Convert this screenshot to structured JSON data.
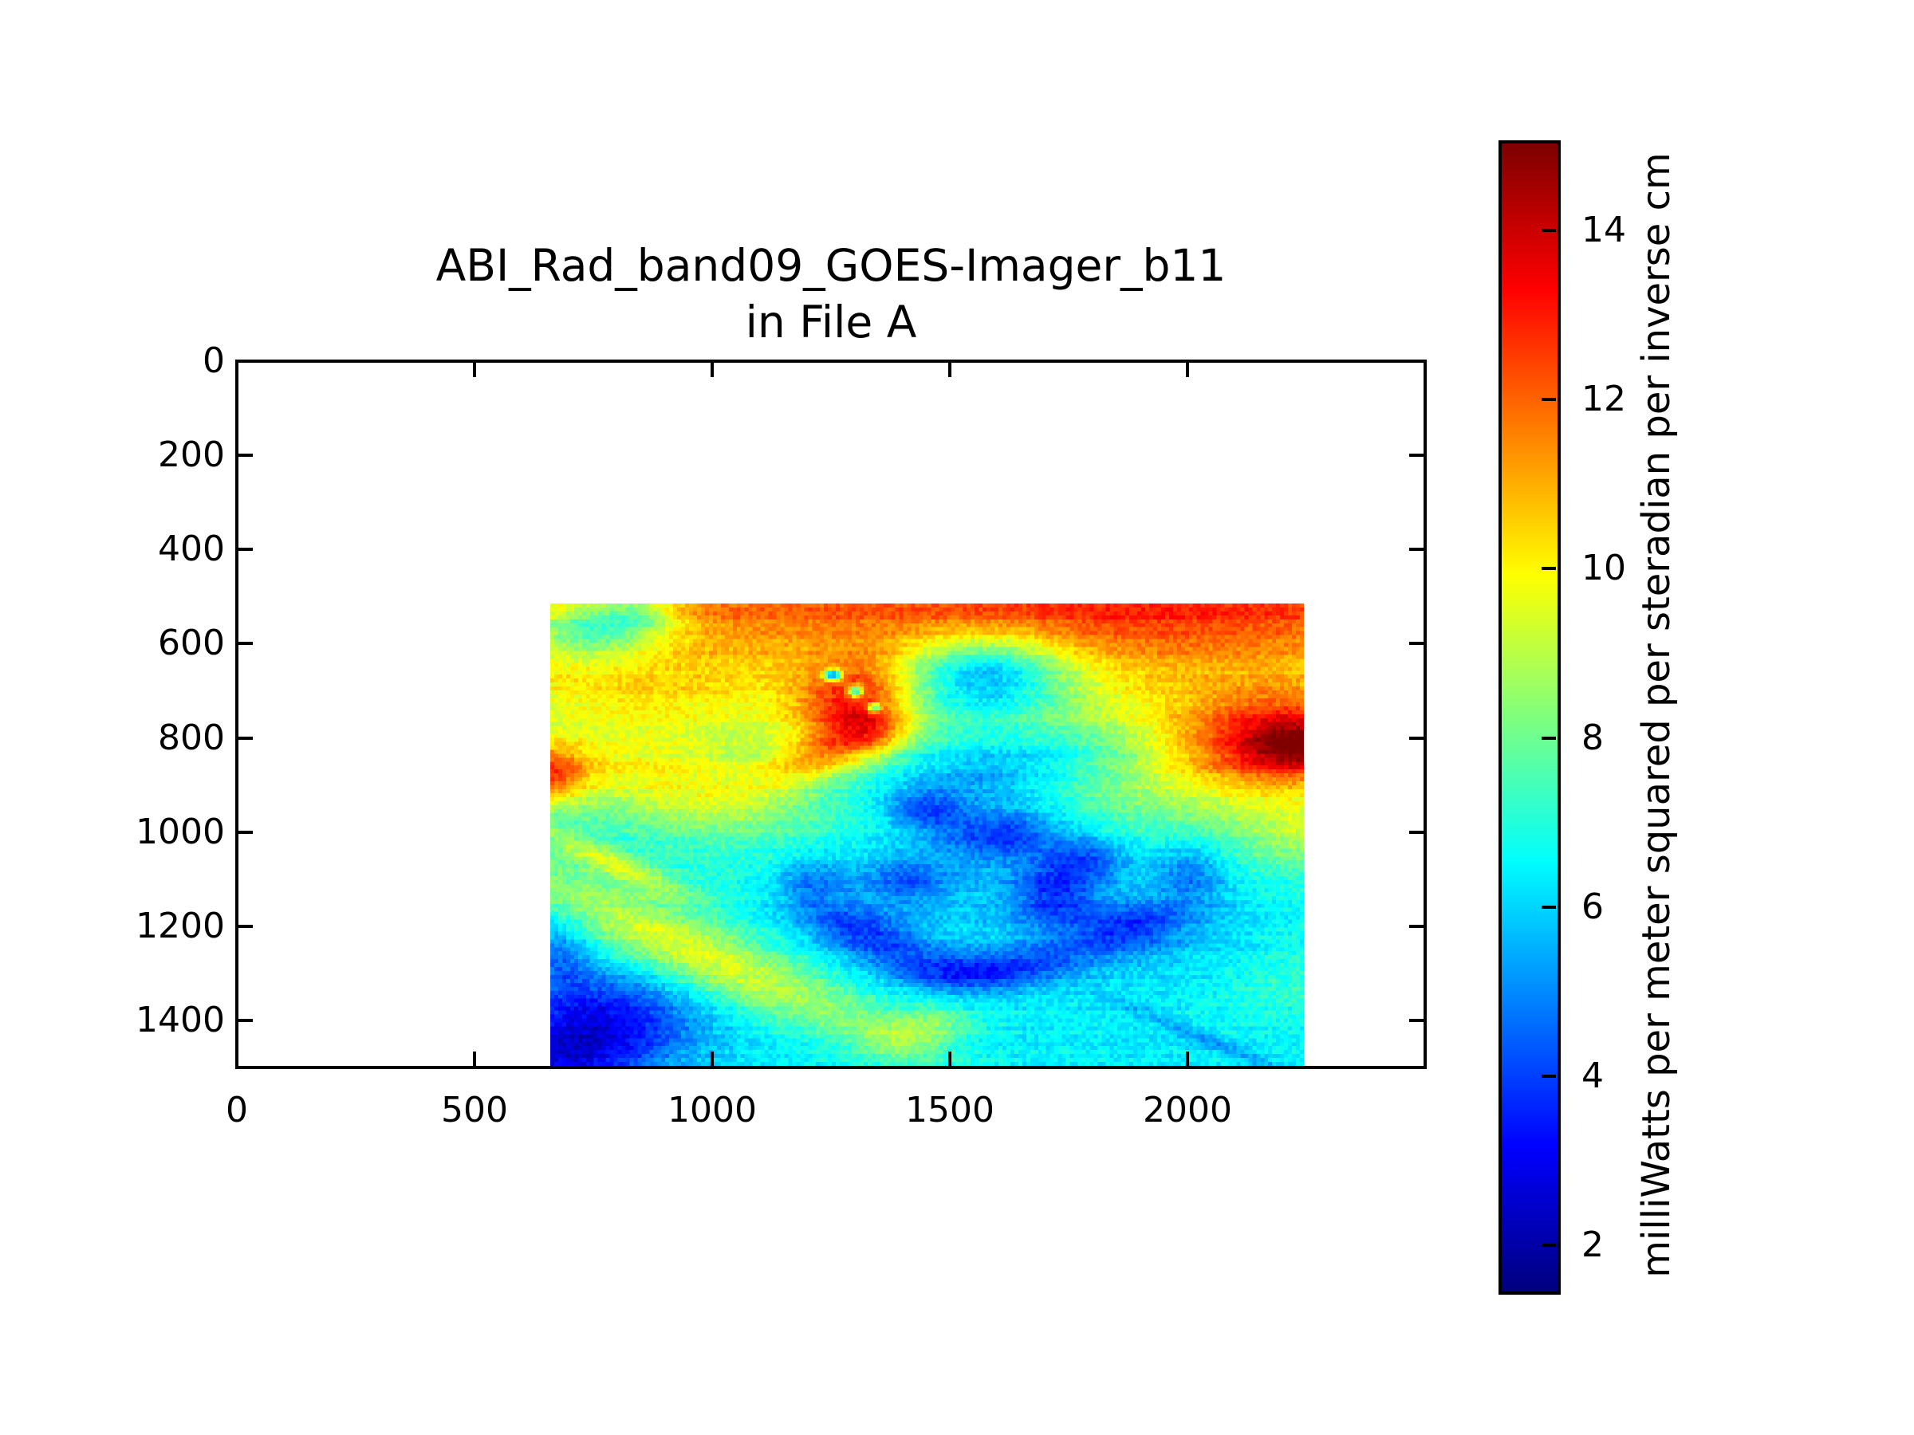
{
  "figure": {
    "background": "#ffffff",
    "size": [
      2400,
      1800
    ]
  },
  "chart_data": {
    "type": "heatmap",
    "title": "ABI_Rad_band09_GOES-Imager_b11",
    "title_line2": "in File A",
    "xlabel": "",
    "ylabel": "",
    "x_ticks": [
      0,
      500,
      1000,
      1500,
      2000
    ],
    "y_ticks": [
      0,
      200,
      400,
      600,
      800,
      1000,
      1200,
      1400
    ],
    "xlim": [
      0,
      2500
    ],
    "ylim": [
      0,
      1500
    ],
    "y_axis_inverted": true,
    "grid": false,
    "colormap": "jet",
    "image_extent": {
      "x_min": 659,
      "x_max": 2245,
      "y_top": 514,
      "y_bottom": 1497
    },
    "colorbar": {
      "location": "right",
      "ticks": [
        2,
        4,
        6,
        8,
        10,
        12,
        14
      ],
      "vmin": 1.45,
      "vmax": 15.05,
      "label": "milliWatts per meter squared per steradian per inverse cm"
    },
    "layout": {
      "axes_rect": [
        297,
        453,
        1490,
        886
      ],
      "colorbar_rect": [
        1881,
        178,
        72,
        1442
      ],
      "tick_length": 18,
      "tick_width": 4,
      "tick_direction": "in"
    },
    "description": "GOES ABI band-09 radiance sub-scene: warm orange band (~11-13) across the top, dark-red maximum (~15) at the right edge near rows 750-850, an orange-red hooked front near column 1300 row 700, a large cool cyan/blue cloud swirl (~3-7) through the center and lower half, and a deep-blue minimum (~2) in the bottom-left corner",
    "image_model": {
      "grid": [
        190,
        117
      ],
      "base": 7.1,
      "noise": 0.5,
      "row_noise": 0.2,
      "seed": 1234,
      "blobs": [
        [
          0.5,
          -0.05,
          9.9,
          0.21,
          0,
          5.0
        ],
        [
          0.75,
          0.04,
          0.38,
          0.13,
          0,
          1.2
        ],
        [
          0.15,
          0.22,
          0.25,
          0.14,
          10,
          2.0
        ],
        [
          0.06,
          0.05,
          0.1,
          0.07,
          0,
          -4.0
        ],
        [
          0.12,
          0.02,
          0.05,
          0.035,
          0,
          -1.6
        ],
        [
          0.86,
          0.33,
          0.24,
          0.2,
          0,
          2.2
        ],
        [
          0.99,
          0.3,
          0.15,
          0.105,
          0,
          5.0
        ],
        [
          1.0,
          0.31,
          0.075,
          0.05,
          0,
          1.9
        ],
        [
          1.01,
          0.5,
          0.09,
          0.07,
          0,
          1.3
        ],
        [
          0.4,
          0.22,
          0.075,
          0.1,
          15,
          4.2
        ],
        [
          0.43,
          0.275,
          0.05,
          0.05,
          0,
          1.7
        ],
        [
          0.355,
          0.335,
          0.1,
          0.045,
          -35,
          2.6
        ],
        [
          0.375,
          0.155,
          0.012,
          0.012,
          0,
          -7.0
        ],
        [
          0.405,
          0.19,
          0.01,
          0.012,
          0,
          -6.0
        ],
        [
          0.43,
          0.225,
          0.009,
          0.01,
          0,
          -5.0
        ],
        [
          -0.01,
          0.37,
          0.06,
          0.065,
          0,
          4.4
        ],
        [
          0.17,
          0.4,
          0.19,
          0.085,
          20,
          2.4
        ],
        [
          0.58,
          0.15,
          0.11,
          0.085,
          0,
          -4.0
        ],
        [
          0.66,
          0.33,
          0.18,
          0.06,
          -8,
          -1.5
        ],
        [
          0.58,
          0.58,
          0.28,
          0.22,
          0,
          -1.3
        ],
        [
          0.56,
          0.4,
          0.1,
          0.07,
          0,
          -1.0
        ],
        [
          0.85,
          0.72,
          0.2,
          0.17,
          0,
          -0.9
        ],
        [
          0.5,
          1.05,
          9.9,
          0.2,
          0,
          -0.7
        ],
        [
          0.5,
          0.45,
          0.055,
          0.042,
          20,
          -2.0
        ],
        [
          0.6,
          0.5,
          0.075,
          0.05,
          -15,
          -2.2
        ],
        [
          0.47,
          0.6,
          0.06,
          0.05,
          0,
          -1.8
        ],
        [
          0.41,
          0.71,
          0.095,
          0.05,
          30,
          -2.6
        ],
        [
          0.53,
          0.8,
          0.1,
          0.045,
          10,
          -2.2
        ],
        [
          0.67,
          0.62,
          0.055,
          0.085,
          0,
          -2.2
        ],
        [
          0.77,
          0.7,
          0.075,
          0.05,
          -20,
          -2.1
        ],
        [
          0.85,
          0.58,
          0.05,
          0.07,
          0,
          -1.7
        ],
        [
          0.35,
          0.6,
          0.05,
          0.05,
          0,
          -1.7
        ],
        [
          0.63,
          0.78,
          0.095,
          0.04,
          -10,
          -1.9
        ],
        [
          0.72,
          0.55,
          0.05,
          0.045,
          0,
          -1.8
        ],
        [
          0.02,
          0.97,
          0.115,
          0.1,
          0,
          -3.7
        ],
        [
          0.09,
          0.87,
          0.13,
          0.085,
          25,
          -2.4
        ],
        [
          0.01,
          0.75,
          0.05,
          0.09,
          0,
          -1.8
        ],
        [
          0.2,
          0.76,
          0.3,
          0.062,
          36,
          2.6
        ],
        [
          0.08,
          0.56,
          0.12,
          0.026,
          36,
          2.2
        ],
        [
          0.47,
          0.94,
          0.06,
          0.05,
          0,
          1.7
        ],
        [
          0.52,
          0.9,
          0.045,
          0.04,
          0,
          1.0
        ],
        [
          0.97,
          0.82,
          0.11,
          0.1,
          0,
          0.6
        ],
        [
          0.88,
          0.95,
          0.16,
          0.015,
          35,
          -1.2
        ]
      ]
    }
  }
}
